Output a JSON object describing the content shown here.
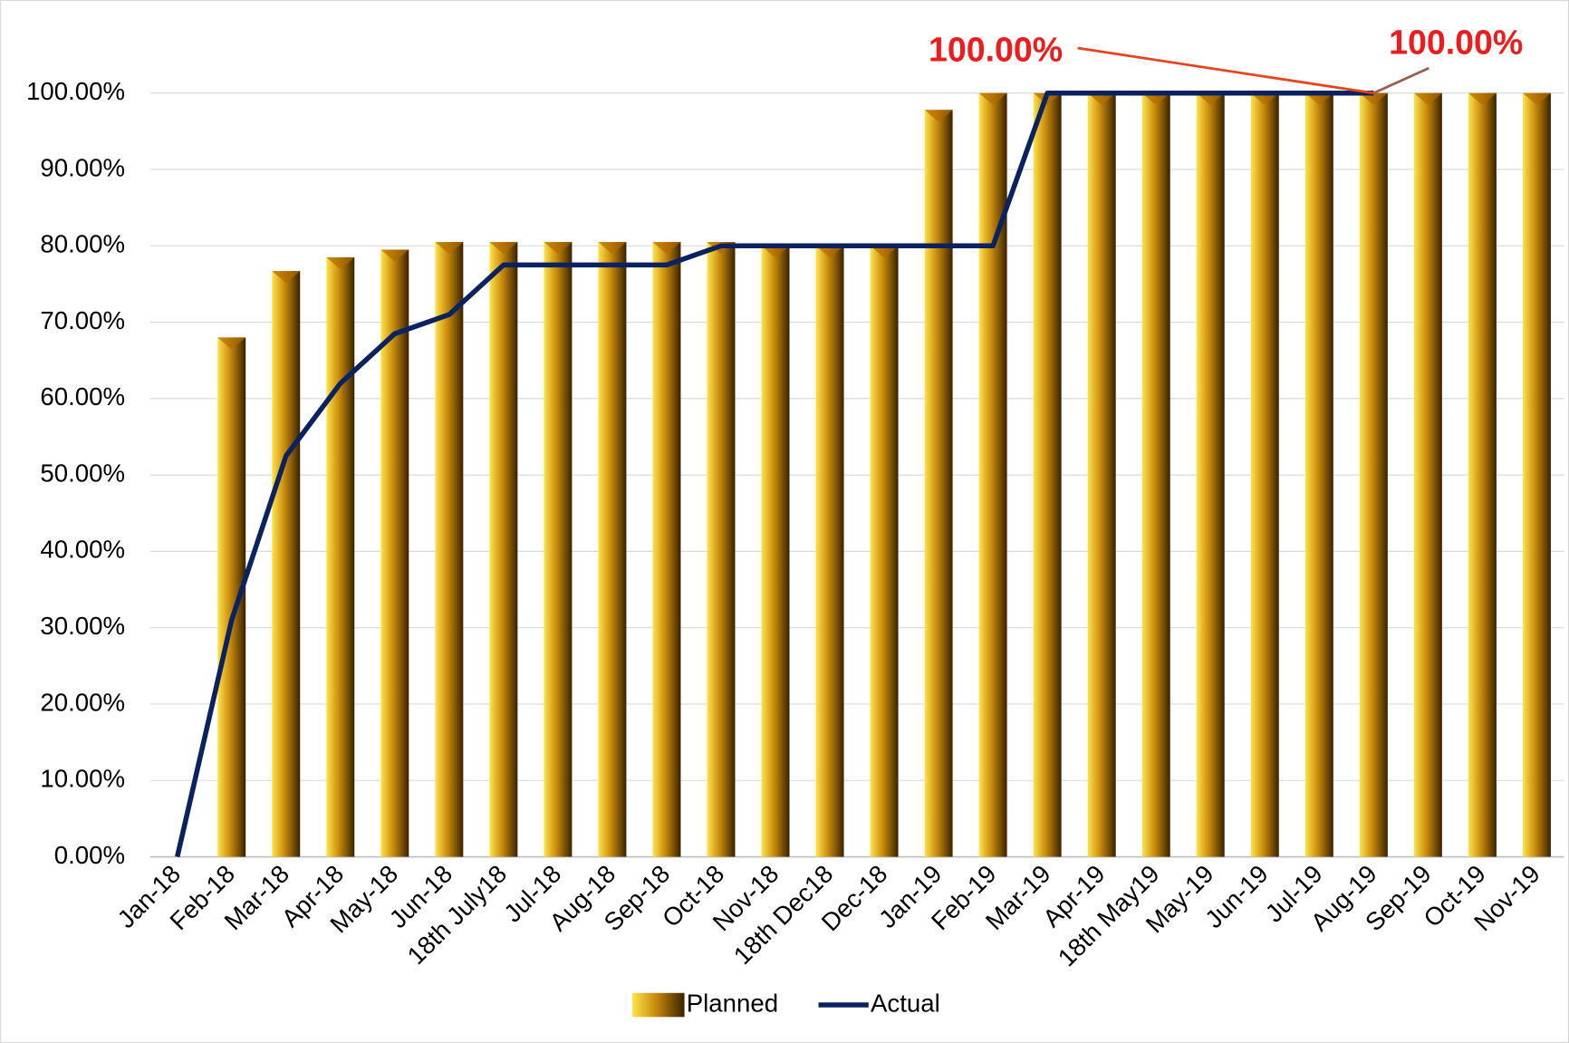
{
  "chart_data": {
    "type": "bar_line",
    "categories": [
      "Jan-18",
      "Feb-18",
      "Mar-18",
      "Apr-18",
      "May-18",
      "Jun-18",
      "18th July18",
      "Jul-18",
      "Aug-18",
      "Sep-18",
      "Oct-18",
      "Nov-18",
      "18th Dec18",
      "Dec-18",
      "Jan-19",
      "Feb-19",
      "Mar-19",
      "Apr-19",
      "18th May19",
      "May-19",
      "Jun-19",
      "Jul-19",
      "Aug-19",
      "Sep-19",
      "Oct-19",
      "Nov-19"
    ],
    "series": [
      {
        "name": "Planned",
        "type": "bar",
        "color": "#c88a0c",
        "values": [
          0,
          68,
          76.7,
          78.5,
          79.5,
          80.5,
          80.5,
          80.5,
          80.5,
          80.5,
          80.5,
          80,
          80,
          80,
          97.8,
          100,
          100,
          100,
          100,
          100,
          100,
          100,
          100,
          100,
          100,
          100
        ]
      },
      {
        "name": "Actual",
        "type": "line",
        "color": "#0b2260",
        "values": [
          0,
          31,
          52.5,
          62,
          68.5,
          71,
          77.5,
          77.5,
          77.5,
          77.5,
          80,
          80,
          80,
          80,
          80,
          80,
          100,
          100,
          100,
          100,
          100,
          100,
          100,
          null,
          null,
          null
        ]
      }
    ],
    "annotations": [
      {
        "text": "100.00%",
        "series": 1,
        "index": 22
      },
      {
        "text": "100.00%",
        "series": 1,
        "index": 22
      }
    ],
    "ylim": [
      0,
      100
    ],
    "yticks": [
      {
        "value": 0,
        "label": "0.00%"
      },
      {
        "value": 10,
        "label": "10.00%"
      },
      {
        "value": 20,
        "label": "20.00%"
      },
      {
        "value": 30,
        "label": "30.00%"
      },
      {
        "value": 40,
        "label": "40.00%"
      },
      {
        "value": 50,
        "label": "50.00%"
      },
      {
        "value": 60,
        "label": "60.00%"
      },
      {
        "value": 70,
        "label": "70.00%"
      },
      {
        "value": 80,
        "label": "80.00%"
      },
      {
        "value": 90,
        "label": "90.00%"
      },
      {
        "value": 100,
        "label": "100.00%"
      }
    ],
    "grid": true,
    "legend": "bottom"
  }
}
